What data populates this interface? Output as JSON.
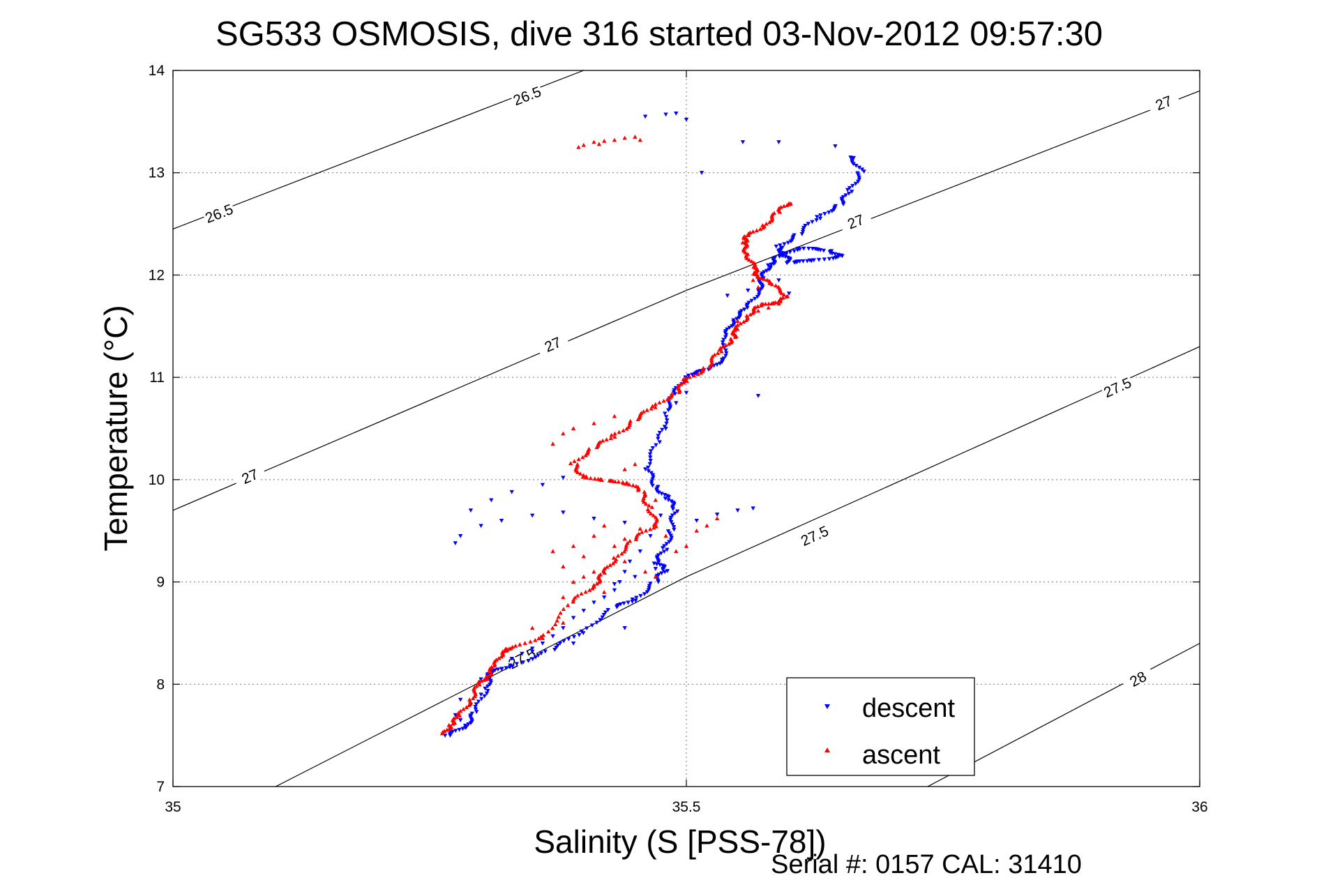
{
  "chart_data": {
    "type": "scatter",
    "title": "SG533 OSMOSIS, dive 316 started 03-Nov-2012 09:57:30",
    "xlabel": "Salinity (S [PSS-78])",
    "ylabel": "Temperature (°C)",
    "xlim": [
      35,
      36
    ],
    "ylim": [
      7,
      14
    ],
    "xticks": [
      35,
      35.5,
      36
    ],
    "xtick_labels": [
      "35",
      "35.5",
      "36"
    ],
    "yticks": [
      7,
      8,
      9,
      10,
      11,
      12,
      13,
      14
    ],
    "ytick_labels": [
      "7",
      "8",
      "9",
      "10",
      "11",
      "12",
      "13",
      "14"
    ],
    "grid": true,
    "legend_position": "bottom-right",
    "footer": "Serial #: 0157  CAL: 31410",
    "density_contours": [
      {
        "label": "26.5",
        "points": [
          [
            35,
            12.45
          ],
          [
            35.4,
            14.0
          ]
        ],
        "labels": [
          {
            "text": "26.5",
            "x": 35.045,
            "y": 12.6
          },
          {
            "text": "26.5",
            "x": 35.345,
            "y": 13.75
          }
        ]
      },
      {
        "label": "27",
        "points": [
          [
            35,
            9.7
          ],
          [
            35.5,
            11.85
          ],
          [
            36,
            13.8
          ]
        ],
        "labels": [
          {
            "text": "27",
            "x": 35.075,
            "y": 10.03
          },
          {
            "text": "27",
            "x": 35.37,
            "y": 11.32
          },
          {
            "text": "27",
            "x": 35.665,
            "y": 12.52
          },
          {
            "text": "27",
            "x": 35.965,
            "y": 13.68
          }
        ]
      },
      {
        "label": "27.5",
        "points": [
          [
            35.1,
            7.0
          ],
          [
            35.5,
            9.05
          ],
          [
            36,
            11.3
          ]
        ],
        "labels": [
          {
            "text": "27.5",
            "x": 35.34,
            "y": 8.25
          },
          {
            "text": "27.5",
            "x": 35.625,
            "y": 9.45
          },
          {
            "text": "27.5",
            "x": 35.92,
            "y": 10.9
          }
        ]
      },
      {
        "label": "28",
        "points": [
          [
            35.735,
            7.0
          ],
          [
            36,
            8.4
          ]
        ],
        "labels": [
          {
            "text": "28",
            "x": 35.94,
            "y": 8.05
          }
        ]
      }
    ],
    "series": [
      {
        "name": "descent",
        "color": "#0000ff",
        "marker": "triangle-down",
        "trace": [
          [
            35.27,
            7.48
          ],
          [
            35.285,
            7.6
          ],
          [
            35.295,
            7.75
          ],
          [
            35.305,
            7.95
          ],
          [
            35.31,
            8.1
          ],
          [
            35.33,
            8.2
          ],
          [
            35.37,
            8.35
          ],
          [
            35.4,
            8.5
          ],
          [
            35.43,
            8.75
          ],
          [
            35.45,
            8.85
          ],
          [
            35.47,
            9.0
          ],
          [
            35.48,
            9.1
          ],
          [
            35.47,
            9.2
          ],
          [
            35.48,
            9.35
          ],
          [
            35.485,
            9.5
          ],
          [
            35.49,
            9.7
          ],
          [
            35.48,
            9.85
          ],
          [
            35.47,
            9.95
          ],
          [
            35.46,
            10.1
          ],
          [
            35.475,
            10.4
          ],
          [
            35.48,
            10.7
          ],
          [
            35.49,
            10.85
          ],
          [
            35.5,
            11.0
          ],
          [
            35.525,
            11.1
          ],
          [
            35.535,
            11.2
          ],
          [
            35.54,
            11.4
          ],
          [
            35.545,
            11.55
          ],
          [
            35.56,
            11.7
          ],
          [
            35.57,
            11.85
          ],
          [
            35.575,
            11.95
          ],
          [
            35.58,
            12.1
          ],
          [
            35.59,
            12.2
          ],
          [
            35.61,
            12.25
          ],
          [
            35.64,
            12.22
          ],
          [
            35.65,
            12.2
          ],
          [
            35.62,
            12.15
          ],
          [
            35.6,
            12.1
          ],
          [
            35.595,
            12.2
          ],
          [
            35.59,
            12.3
          ],
          [
            35.61,
            12.4
          ],
          [
            35.63,
            12.55
          ],
          [
            35.65,
            12.7
          ],
          [
            35.66,
            12.85
          ],
          [
            35.67,
            13.0
          ],
          [
            35.66,
            13.15
          ]
        ],
        "scatter_points": [
          [
            35.48,
            13.57
          ],
          [
            35.49,
            13.58
          ],
          [
            35.5,
            13.52
          ],
          [
            35.46,
            13.55
          ],
          [
            35.555,
            13.3
          ],
          [
            35.59,
            13.3
          ],
          [
            35.645,
            13.26
          ],
          [
            35.515,
            13.0
          ],
          [
            35.465,
            9.45
          ],
          [
            35.475,
            9.65
          ],
          [
            35.455,
            9.3
          ],
          [
            35.445,
            9.2
          ],
          [
            35.44,
            9.1
          ],
          [
            35.435,
            9.0
          ],
          [
            35.43,
            8.92
          ],
          [
            35.42,
            8.85
          ],
          [
            35.41,
            8.8
          ],
          [
            35.4,
            8.72
          ],
          [
            35.39,
            8.65
          ],
          [
            35.38,
            8.55
          ],
          [
            35.37,
            8.47
          ],
          [
            35.36,
            8.4
          ],
          [
            35.35,
            8.35
          ],
          [
            35.34,
            8.3
          ],
          [
            35.32,
            8.15
          ],
          [
            35.3,
            8.05
          ],
          [
            35.28,
            7.85
          ],
          [
            35.275,
            7.7
          ],
          [
            35.27,
            7.55
          ],
          [
            35.265,
            7.5
          ],
          [
            35.275,
            9.38
          ],
          [
            35.28,
            9.45
          ],
          [
            35.3,
            9.55
          ],
          [
            35.32,
            9.6
          ],
          [
            35.35,
            9.65
          ],
          [
            35.38,
            9.68
          ],
          [
            35.41,
            9.62
          ],
          [
            35.44,
            9.58
          ],
          [
            35.29,
            9.7
          ],
          [
            35.31,
            9.8
          ],
          [
            35.33,
            9.88
          ],
          [
            35.36,
            9.95
          ],
          [
            35.38,
            10.02
          ],
          [
            35.51,
            9.6
          ],
          [
            35.53,
            9.66
          ],
          [
            35.55,
            9.7
          ],
          [
            35.565,
            9.72
          ],
          [
            35.48,
            10.5
          ],
          [
            35.49,
            10.75
          ],
          [
            35.5,
            10.85
          ],
          [
            35.57,
            10.82
          ],
          [
            35.54,
            11.8
          ],
          [
            35.56,
            11.85
          ],
          [
            35.59,
            11.95
          ],
          [
            35.6,
            11.82
          ],
          [
            35.47,
            9.13
          ],
          [
            35.45,
            9.05
          ],
          [
            35.43,
            8.98
          ],
          [
            35.44,
            8.55
          ],
          [
            35.39,
            8.4
          ],
          [
            35.35,
            8.32
          ],
          [
            35.33,
            8.25
          ],
          [
            35.3,
            7.9
          ],
          [
            35.29,
            7.8
          ],
          [
            35.28,
            7.65
          ]
        ]
      },
      {
        "name": "ascent",
        "color": "#ff0000",
        "marker": "triangle-up",
        "trace": [
          [
            35.265,
            7.5
          ],
          [
            35.27,
            7.62
          ],
          [
            35.28,
            7.72
          ],
          [
            35.29,
            7.85
          ],
          [
            35.3,
            8.0
          ],
          [
            35.305,
            8.1
          ],
          [
            35.315,
            8.2
          ],
          [
            35.32,
            8.3
          ],
          [
            35.33,
            8.35
          ],
          [
            35.36,
            8.5
          ],
          [
            35.39,
            8.8
          ],
          [
            35.41,
            8.95
          ],
          [
            35.42,
            9.1
          ],
          [
            35.43,
            9.25
          ],
          [
            35.45,
            9.4
          ],
          [
            35.47,
            9.55
          ],
          [
            35.465,
            9.75
          ],
          [
            35.455,
            9.9
          ],
          [
            35.44,
            9.95
          ],
          [
            35.42,
            10.0
          ],
          [
            35.4,
            10.05
          ],
          [
            35.39,
            10.15
          ],
          [
            35.41,
            10.3
          ],
          [
            35.43,
            10.45
          ],
          [
            35.45,
            10.6
          ],
          [
            35.47,
            10.7
          ],
          [
            35.49,
            10.85
          ],
          [
            35.5,
            11.0
          ],
          [
            35.52,
            11.1
          ],
          [
            35.535,
            11.25
          ],
          [
            35.545,
            11.4
          ],
          [
            35.55,
            11.5
          ],
          [
            35.56,
            11.6
          ],
          [
            35.575,
            11.7
          ],
          [
            35.585,
            11.75
          ],
          [
            35.6,
            11.8
          ],
          [
            35.58,
            11.9
          ],
          [
            35.57,
            12.0
          ],
          [
            35.565,
            12.1
          ],
          [
            35.56,
            12.2
          ],
          [
            35.555,
            12.3
          ],
          [
            35.56,
            12.4
          ],
          [
            35.575,
            12.5
          ],
          [
            35.59,
            12.6
          ],
          [
            35.6,
            12.7
          ]
        ],
        "scatter_points": [
          [
            35.4,
            13.27
          ],
          [
            35.41,
            13.3
          ],
          [
            35.42,
            13.31
          ],
          [
            35.43,
            13.32
          ],
          [
            35.44,
            13.34
          ],
          [
            35.45,
            13.35
          ],
          [
            35.395,
            13.25
          ],
          [
            35.415,
            13.28
          ],
          [
            35.455,
            13.32
          ],
          [
            35.35,
            8.55
          ],
          [
            35.36,
            8.45
          ],
          [
            35.38,
            8.6
          ],
          [
            35.38,
            8.85
          ],
          [
            35.39,
            9.0
          ],
          [
            35.4,
            9.05
          ],
          [
            35.38,
            9.15
          ],
          [
            35.37,
            9.3
          ],
          [
            35.39,
            9.35
          ],
          [
            35.41,
            9.45
          ],
          [
            35.42,
            9.55
          ],
          [
            35.4,
            9.25
          ],
          [
            35.41,
            9.1
          ],
          [
            35.42,
            8.9
          ],
          [
            35.44,
            9.2
          ],
          [
            35.46,
            9.1
          ],
          [
            35.47,
            9.05
          ],
          [
            35.48,
            9.45
          ],
          [
            35.49,
            9.3
          ],
          [
            35.5,
            9.35
          ],
          [
            35.51,
            9.5
          ],
          [
            35.52,
            9.55
          ],
          [
            35.53,
            9.62
          ],
          [
            35.44,
            10.1
          ],
          [
            35.45,
            10.15
          ],
          [
            35.46,
            9.85
          ],
          [
            35.47,
            9.8
          ],
          [
            35.43,
            9.35
          ],
          [
            35.44,
            9.42
          ],
          [
            35.455,
            9.52
          ],
          [
            35.37,
            10.35
          ],
          [
            35.38,
            10.45
          ],
          [
            35.39,
            10.5
          ],
          [
            35.41,
            10.55
          ],
          [
            35.43,
            10.62
          ],
          [
            35.55,
            11.55
          ],
          [
            35.57,
            11.65
          ],
          [
            35.58,
            11.68
          ],
          [
            35.59,
            11.72
          ],
          [
            35.565,
            11.95
          ],
          [
            35.57,
            11.88
          ]
        ]
      }
    ]
  }
}
